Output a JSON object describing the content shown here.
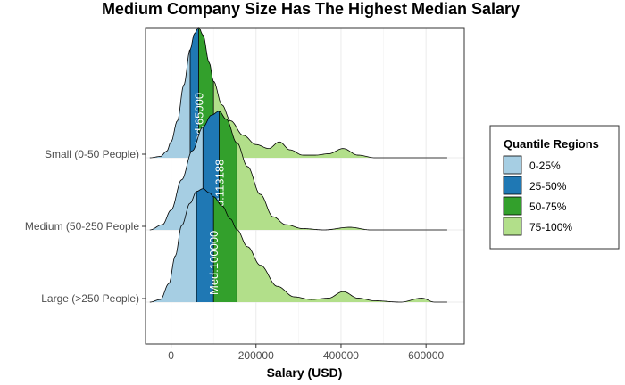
{
  "chart_data": {
    "type": "ridgeline",
    "title": "Medium Company Size Has The Highest Median Salary",
    "xlabel": "Salary (USD)",
    "ylabel": "",
    "xlim": [
      -60000,
      690000
    ],
    "x_ticks": [
      0,
      200000,
      400000,
      600000
    ],
    "x_tick_labels": [
      "0",
      "200000",
      "400000",
      "600000"
    ],
    "grid": true,
    "legend": {
      "title": "Quantile Regions",
      "placement": "right",
      "entries": [
        {
          "label": "0-25%",
          "color": "#a6cee3"
        },
        {
          "label": "25-50%",
          "color": "#1f78b4"
        },
        {
          "label": "50-75%",
          "color": "#33a02c"
        },
        {
          "label": "75-100%",
          "color": "#b2df8a"
        }
      ]
    },
    "series": [
      {
        "name": "Small (0-50 People)",
        "quantiles": {
          "q1": 45000,
          "median": 65000,
          "q3": 100000
        },
        "median_label": "Med:65000",
        "range": [
          -50000,
          650000
        ],
        "density": [
          {
            "x": -50000,
            "y": 0.0
          },
          {
            "x": -25000,
            "y": 0.01
          },
          {
            "x": -10000,
            "y": 0.05
          },
          {
            "x": 0,
            "y": 0.12
          },
          {
            "x": 15000,
            "y": 0.28
          },
          {
            "x": 30000,
            "y": 0.55
          },
          {
            "x": 45000,
            "y": 0.82
          },
          {
            "x": 55000,
            "y": 0.94
          },
          {
            "x": 65000,
            "y": 0.99
          },
          {
            "x": 75000,
            "y": 0.93
          },
          {
            "x": 90000,
            "y": 0.72
          },
          {
            "x": 100000,
            "y": 0.58
          },
          {
            "x": 120000,
            "y": 0.4
          },
          {
            "x": 140000,
            "y": 0.28
          },
          {
            "x": 170000,
            "y": 0.17
          },
          {
            "x": 200000,
            "y": 0.1
          },
          {
            "x": 230000,
            "y": 0.07
          },
          {
            "x": 255000,
            "y": 0.12
          },
          {
            "x": 280000,
            "y": 0.06
          },
          {
            "x": 310000,
            "y": 0.02
          },
          {
            "x": 340000,
            "y": 0.02
          },
          {
            "x": 370000,
            "y": 0.03
          },
          {
            "x": 405000,
            "y": 0.07
          },
          {
            "x": 440000,
            "y": 0.02
          },
          {
            "x": 480000,
            "y": 0.0
          },
          {
            "x": 560000,
            "y": 0.0
          },
          {
            "x": 650000,
            "y": 0.0
          }
        ]
      },
      {
        "name": "Medium (50-250 People",
        "quantiles": {
          "q1": 75000,
          "median": 113188,
          "q3": 155000
        },
        "median_label": "Med:113188",
        "range": [
          -50000,
          650000
        ],
        "density": [
          {
            "x": -50000,
            "y": 0.0
          },
          {
            "x": -20000,
            "y": 0.04
          },
          {
            "x": 0,
            "y": 0.15
          },
          {
            "x": 25000,
            "y": 0.38
          },
          {
            "x": 50000,
            "y": 0.6
          },
          {
            "x": 75000,
            "y": 0.78
          },
          {
            "x": 95000,
            "y": 0.87
          },
          {
            "x": 113188,
            "y": 0.9
          },
          {
            "x": 130000,
            "y": 0.84
          },
          {
            "x": 155000,
            "y": 0.66
          },
          {
            "x": 180000,
            "y": 0.48
          },
          {
            "x": 210000,
            "y": 0.27
          },
          {
            "x": 240000,
            "y": 0.1
          },
          {
            "x": 270000,
            "y": 0.04
          },
          {
            "x": 310000,
            "y": 0.01
          },
          {
            "x": 360000,
            "y": 0.0
          },
          {
            "x": 420000,
            "y": 0.02
          },
          {
            "x": 470000,
            "y": 0.0
          },
          {
            "x": 650000,
            "y": 0.0
          }
        ]
      },
      {
        "name": "Large (>250 People)",
        "quantiles": {
          "q1": 60000,
          "median": 100000,
          "q3": 155000
        },
        "median_label": "Med:100000",
        "range": [
          -50000,
          650000
        ],
        "density": [
          {
            "x": -50000,
            "y": 0.0
          },
          {
            "x": -25000,
            "y": 0.02
          },
          {
            "x": -5000,
            "y": 0.14
          },
          {
            "x": 10000,
            "y": 0.35
          },
          {
            "x": 25000,
            "y": 0.58
          },
          {
            "x": 45000,
            "y": 0.75
          },
          {
            "x": 60000,
            "y": 0.84
          },
          {
            "x": 75000,
            "y": 0.86
          },
          {
            "x": 90000,
            "y": 0.83
          },
          {
            "x": 100000,
            "y": 0.8
          },
          {
            "x": 120000,
            "y": 0.73
          },
          {
            "x": 140000,
            "y": 0.63
          },
          {
            "x": 155000,
            "y": 0.55
          },
          {
            "x": 180000,
            "y": 0.42
          },
          {
            "x": 210000,
            "y": 0.28
          },
          {
            "x": 250000,
            "y": 0.12
          },
          {
            "x": 290000,
            "y": 0.04
          },
          {
            "x": 330000,
            "y": 0.02
          },
          {
            "x": 370000,
            "y": 0.03
          },
          {
            "x": 405000,
            "y": 0.08
          },
          {
            "x": 440000,
            "y": 0.03
          },
          {
            "x": 480000,
            "y": 0.01
          },
          {
            "x": 540000,
            "y": 0.0
          },
          {
            "x": 590000,
            "y": 0.03
          },
          {
            "x": 620000,
            "y": 0.0
          },
          {
            "x": 650000,
            "y": 0.0
          }
        ]
      }
    ]
  }
}
